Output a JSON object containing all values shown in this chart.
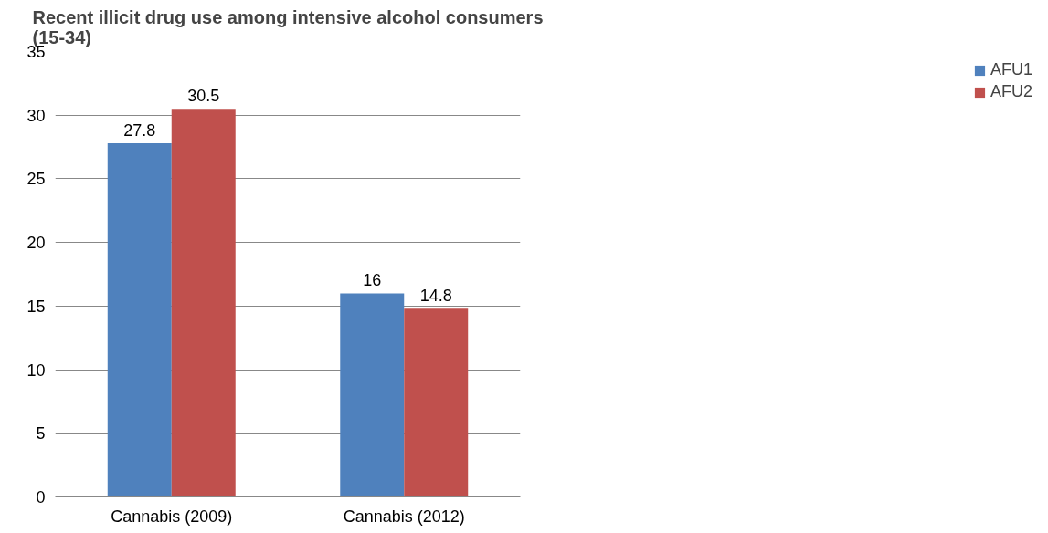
{
  "chart_data": {
    "type": "bar",
    "title": "Recent illicit drug use among intensive alcohol consumers\n(15-34)",
    "categories": [
      "Cannabis (2009)",
      "Cannabis (2012)"
    ],
    "series": [
      {
        "name": "AFU1",
        "color": "#4f81bd",
        "values": [
          27.8,
          16
        ]
      },
      {
        "name": "AFU2",
        "color": "#c0504d",
        "values": [
          30.5,
          14.8
        ]
      }
    ],
    "ylim": [
      0,
      35
    ],
    "yticks": [
      0,
      5,
      10,
      15,
      20,
      25,
      30,
      35
    ],
    "grid": "y",
    "legend": "right",
    "data_labels": true
  }
}
